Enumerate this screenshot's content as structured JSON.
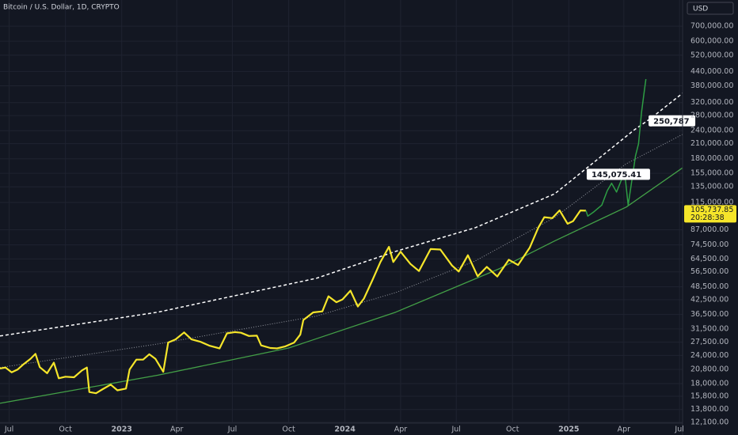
{
  "chart_data": {
    "type": "line",
    "title": "Bitcoin / U.S. Dollar, 1D, CRYPTO",
    "currency": "USD",
    "log_scale": true,
    "grid": true,
    "xlim": [
      "2022-06-16",
      "2025-07-06"
    ],
    "ylim": [
      12000,
      915000
    ],
    "xticks": [
      {
        "value": "2022-07-01",
        "label": "Jul"
      },
      {
        "value": "2022-10-01",
        "label": "Oct"
      },
      {
        "value": "2023-01-01",
        "label": "2023"
      },
      {
        "value": "2023-04-01",
        "label": "Apr"
      },
      {
        "value": "2023-07-01",
        "label": "Jul"
      },
      {
        "value": "2023-10-01",
        "label": "Oct"
      },
      {
        "value": "2024-01-01",
        "label": "2024"
      },
      {
        "value": "2024-04-01",
        "label": "Apr"
      },
      {
        "value": "2024-07-01",
        "label": "Jul"
      },
      {
        "value": "2024-10-01",
        "label": "Oct"
      },
      {
        "value": "2025-01-01",
        "label": "2025"
      },
      {
        "value": "2025-04-01",
        "label": "Apr"
      },
      {
        "value": "2025-07-01",
        "label": "Jul"
      }
    ],
    "yticks": [
      {
        "value": 700000,
        "label": "700,000.00"
      },
      {
        "value": 600000,
        "label": "600,000.00"
      },
      {
        "value": 520000,
        "label": "520,000.00"
      },
      {
        "value": 440000,
        "label": "440,000.00"
      },
      {
        "value": 380000,
        "label": "380,000.00"
      },
      {
        "value": 320000,
        "label": "320,000.00"
      },
      {
        "value": 280000,
        "label": "280,000.00"
      },
      {
        "value": 240000,
        "label": "240,000.00"
      },
      {
        "value": 210000,
        "label": "210,000.00"
      },
      {
        "value": 180000,
        "label": "180,000.00"
      },
      {
        "value": 155000,
        "label": "155,000.00"
      },
      {
        "value": 135000,
        "label": "135,000.00"
      },
      {
        "value": 115000,
        "label": "115,000.00"
      },
      {
        "value": 87000,
        "label": "87,000.00"
      },
      {
        "value": 74500,
        "label": "74,500.00"
      },
      {
        "value": 64500,
        "label": "64,500.00"
      },
      {
        "value": 56500,
        "label": "56,500.00"
      },
      {
        "value": 48500,
        "label": "48,500.00"
      },
      {
        "value": 42500,
        "label": "42,500.00"
      },
      {
        "value": 36500,
        "label": "36,500.00"
      },
      {
        "value": 31500,
        "label": "31,500.00"
      },
      {
        "value": 27500,
        "label": "27,500.00"
      },
      {
        "value": 24000,
        "label": "24,000.00"
      },
      {
        "value": 20800,
        "label": "20,800.00"
      },
      {
        "value": 18000,
        "label": "18,000.00"
      },
      {
        "value": 15800,
        "label": "15,800.00"
      },
      {
        "value": 13800,
        "label": "13,800.00"
      },
      {
        "value": 12100,
        "label": "12,100.00"
      }
    ],
    "series": [
      {
        "color": "#ffffff",
        "style": "dashed",
        "width": 1.5,
        "x": [
          "2022-06-16",
          "2023-03-01",
          "2023-11-15",
          "2024-03-24",
          "2024-08-01",
          "2024-12-09",
          "2025-04-18",
          "2025-05-14",
          "2025-07-06"
        ],
        "values": [
          29300,
          37400,
          52900,
          69700,
          88800,
          125700,
          242000,
          271000,
          352000
        ]
      },
      {
        "color": "#9598a1",
        "style": "dotted",
        "width": 1,
        "x": [
          "2022-06-16",
          "2023-03-01",
          "2023-11-15",
          "2024-03-24",
          "2024-08-01",
          "2024-12-09",
          "2025-04-05",
          "2025-07-06"
        ],
        "values": [
          21200,
          27000,
          35900,
          45700,
          63200,
          98700,
          171000,
          231000
        ]
      },
      {
        "color": "#43a047",
        "style": "solid",
        "width": 1.3,
        "x": [
          "2022-06-16",
          "2023-03-01",
          "2023-10-01",
          "2024-03-24",
          "2024-09-09",
          "2024-12-09",
          "2025-04-05",
          "2025-07-06"
        ],
        "values": [
          14700,
          19600,
          25900,
          37400,
          58300,
          77600,
          109700,
          164000
        ]
      },
      {
        "color": "#f5e52a",
        "style": "solid",
        "width": 2.2,
        "x": [
          "2022-06-16",
          "2022-06-25",
          "2022-07-05",
          "2022-07-15",
          "2022-07-25",
          "2022-08-05",
          "2022-08-13",
          "2022-08-20",
          "2022-09-01",
          "2022-09-12",
          "2022-09-20",
          "2022-10-01",
          "2022-10-15",
          "2022-10-28",
          "2022-11-05",
          "2022-11-09",
          "2022-11-20",
          "2022-12-01",
          "2022-12-14",
          "2022-12-25",
          "2023-01-08",
          "2023-01-14",
          "2023-01-25",
          "2023-02-05",
          "2023-02-15",
          "2023-02-25",
          "2023-03-10",
          "2023-03-18",
          "2023-03-30",
          "2023-04-13",
          "2023-04-25",
          "2023-05-10",
          "2023-05-25",
          "2023-06-10",
          "2023-06-22",
          "2023-07-05",
          "2023-07-15",
          "2023-07-28",
          "2023-08-10",
          "2023-08-17",
          "2023-09-01",
          "2023-09-12",
          "2023-09-25",
          "2023-10-10",
          "2023-10-20",
          "2023-10-25",
          "2023-11-10",
          "2023-11-25",
          "2023-12-05",
          "2023-12-18",
          "2023-12-28",
          "2024-01-10",
          "2024-01-22",
          "2024-02-01",
          "2024-02-15",
          "2024-02-28",
          "2024-03-13",
          "2024-03-20",
          "2024-04-01",
          "2024-04-17",
          "2024-05-01",
          "2024-05-20",
          "2024-06-05",
          "2024-06-24",
          "2024-07-05",
          "2024-07-20",
          "2024-08-05",
          "2024-08-20",
          "2024-09-06",
          "2024-09-25",
          "2024-10-10",
          "2024-10-29",
          "2024-11-12",
          "2024-11-22",
          "2024-12-05",
          "2024-12-17",
          "2024-12-30",
          "2025-01-08",
          "2025-01-20",
          "2025-01-29"
        ],
        "values": [
          21000,
          21200,
          20200,
          20800,
          22000,
          23200,
          24400,
          21300,
          20000,
          22300,
          19000,
          19300,
          19200,
          20600,
          21200,
          16500,
          16300,
          17000,
          17800,
          16800,
          17100,
          20800,
          23000,
          23000,
          24300,
          23200,
          20300,
          27400,
          28300,
          30400,
          28300,
          27600,
          26500,
          25800,
          30100,
          30500,
          30300,
          29300,
          29400,
          26600,
          25900,
          25800,
          26300,
          27400,
          29700,
          34500,
          37300,
          37700,
          44000,
          41400,
          42600,
          46600,
          39600,
          43000,
          52000,
          62500,
          73000,
          62500,
          69500,
          61300,
          57000,
          71400,
          71000,
          60300,
          56700,
          67000,
          54000,
          59500,
          53900,
          64000,
          60600,
          72300,
          88700,
          98900,
          98000,
          106100,
          92500,
          95000,
          106000,
          105700
        ]
      },
      {
        "color": "#2e9e44",
        "style": "solid",
        "width": 1.5,
        "x": [
          "2025-01-29",
          "2025-02-01",
          "2025-02-10",
          "2025-02-24",
          "2025-03-05",
          "2025-03-12",
          "2025-03-20",
          "2025-03-28",
          "2025-04-03",
          "2025-04-08",
          "2025-04-15",
          "2025-04-20",
          "2025-04-25",
          "2025-04-30",
          "2025-05-05",
          "2025-05-07"
        ],
        "values": [
          105700,
          100000,
          104000,
          112000,
          130000,
          140000,
          128000,
          145000,
          150000,
          112000,
          150000,
          185000,
          210000,
          290000,
          370000,
          407000
        ]
      }
    ],
    "annotations": [
      {
        "label": "250,787",
        "value": 250787,
        "x": "2025-05-14"
      },
      {
        "label": "145,075.41",
        "value": 145075.41,
        "x": "2025-04-05"
      }
    ],
    "last_price": {
      "label": "105,737.85",
      "value": 105737.85,
      "countdown": "20:28:38",
      "color": "#f5e52a"
    }
  }
}
